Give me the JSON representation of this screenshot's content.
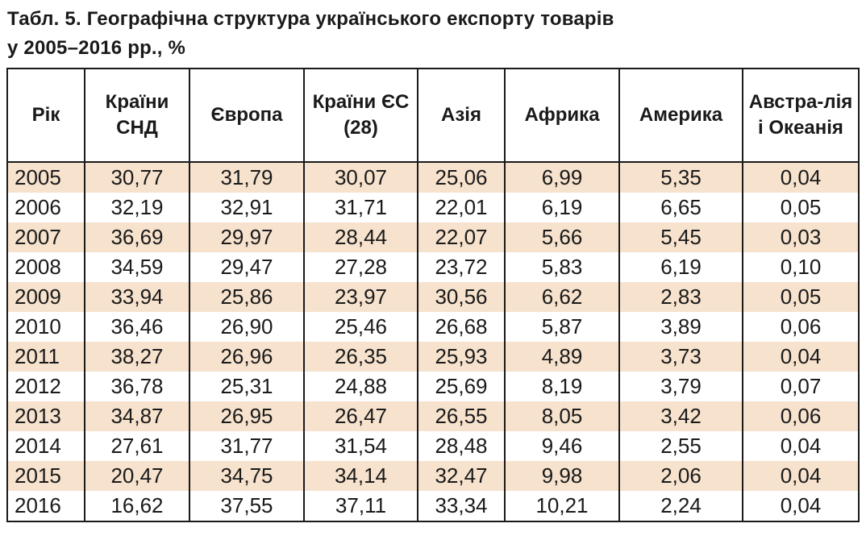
{
  "title": {
    "line1": "Табл. 5. Географічна структура українського експорту товарів",
    "line2": "у 2005–2016 рр., %"
  },
  "colors": {
    "shaded_row": "#f6e2cd",
    "plain_row": "#ffffff",
    "text": "#1a1a1a",
    "border": "#1a1a1a"
  },
  "table": {
    "headers": [
      "Рік",
      "Країни СНД",
      "Європа",
      "Країни ЄС (28)",
      "Азія",
      "Африка",
      "Америка",
      "Австра-лія і Океанія"
    ],
    "rows": [
      [
        "2005",
        "30,77",
        "31,79",
        "30,07",
        "25,06",
        "6,99",
        "5,35",
        "0,04"
      ],
      [
        "2006",
        "32,19",
        "32,91",
        "31,71",
        "22,01",
        "6,19",
        "6,65",
        "0,05"
      ],
      [
        "2007",
        "36,69",
        "29,97",
        "28,44",
        "22,07",
        "5,66",
        "5,45",
        "0,03"
      ],
      [
        "2008",
        "34,59",
        "29,47",
        "27,28",
        "23,72",
        "5,83",
        "6,19",
        "0,10"
      ],
      [
        "2009",
        "33,94",
        "25,86",
        "23,97",
        "30,56",
        "6,62",
        "2,83",
        "0,05"
      ],
      [
        "2010",
        "36,46",
        "26,90",
        "25,46",
        "26,68",
        "5,87",
        "3,89",
        "0,06"
      ],
      [
        "2011",
        "38,27",
        "26,96",
        "26,35",
        "25,93",
        "4,89",
        "3,73",
        "0,04"
      ],
      [
        "2012",
        "36,78",
        "25,31",
        "24,88",
        "25,69",
        "8,19",
        "3,79",
        "0,07"
      ],
      [
        "2013",
        "34,87",
        "26,95",
        "26,47",
        "26,55",
        "8,05",
        "3,42",
        "0,06"
      ],
      [
        "2014",
        "27,61",
        "31,77",
        "31,54",
        "28,48",
        "9,46",
        "2,55",
        "0,04"
      ],
      [
        "2015",
        "20,47",
        "34,75",
        "34,14",
        "32,47",
        "9,98",
        "2,06",
        "0,04"
      ],
      [
        "2016",
        "16,62",
        "37,55",
        "37,11",
        "33,34",
        "10,21",
        "2,24",
        "0,04"
      ]
    ]
  }
}
